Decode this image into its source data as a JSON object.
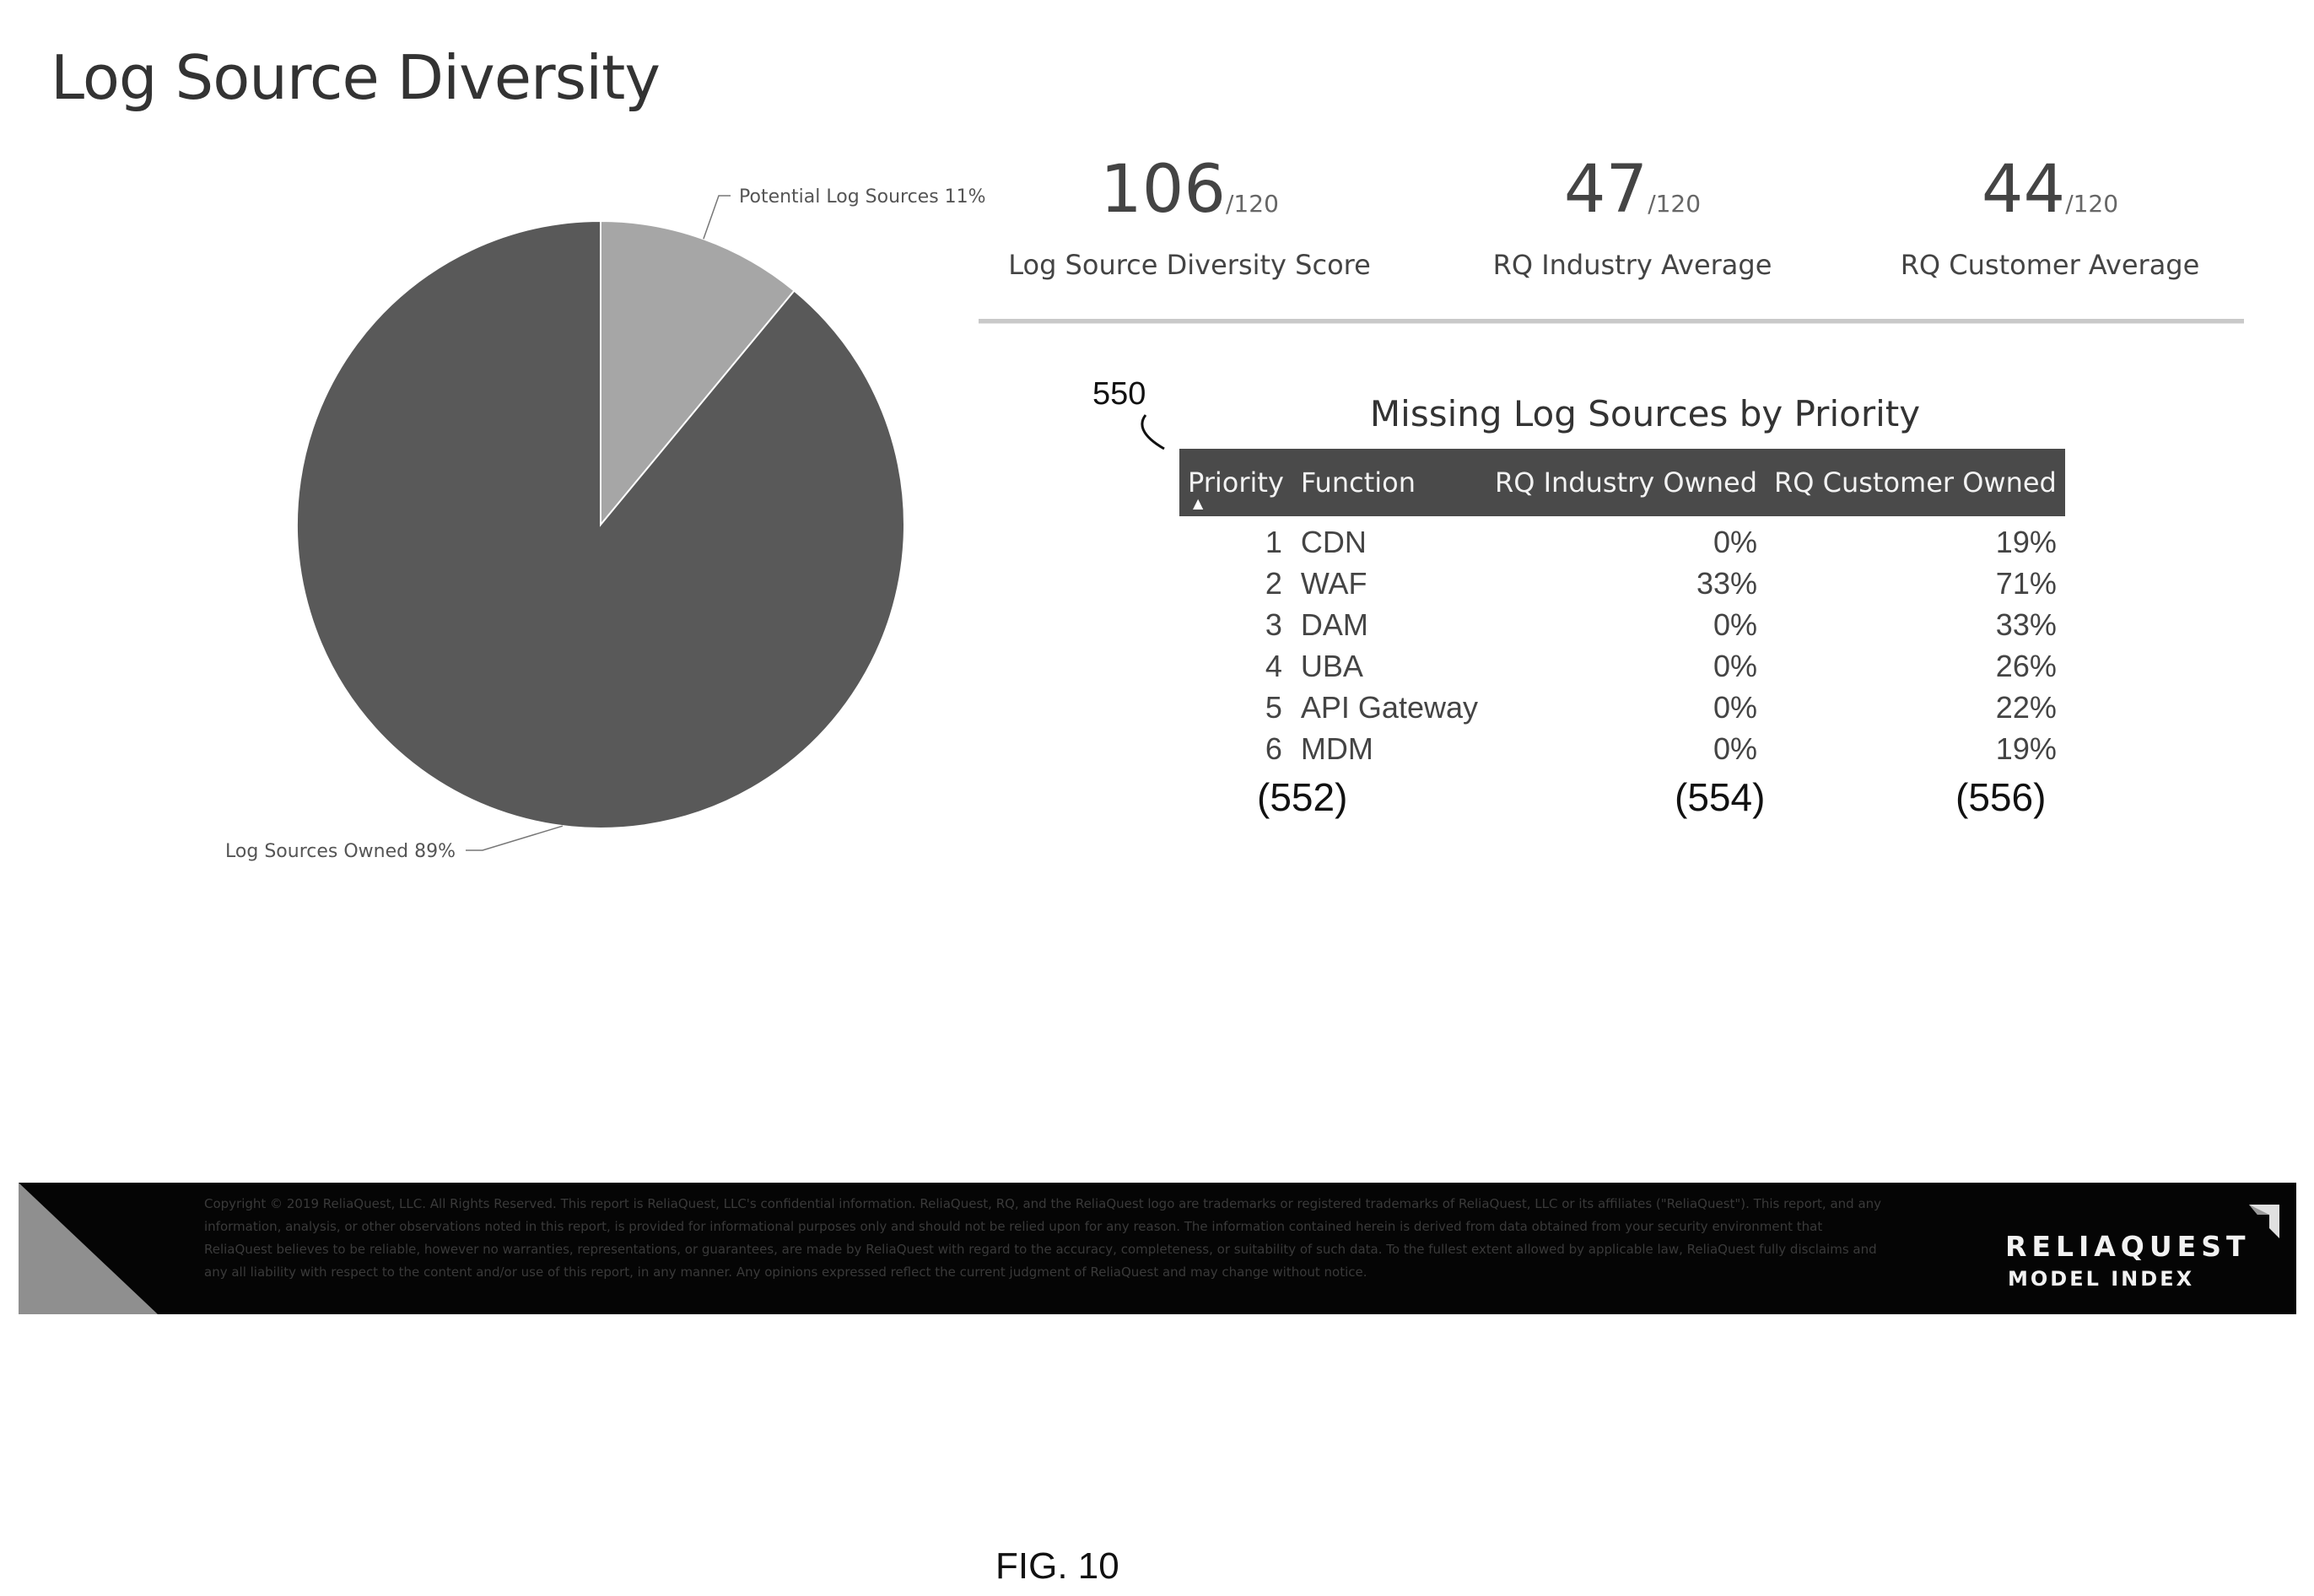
{
  "page": {
    "title": "Log Source Diversity",
    "figure_label": "FIG. 10"
  },
  "chart_data": {
    "type": "pie",
    "slices": [
      {
        "label": "Log Sources Owned 89%",
        "value": 89,
        "color": "#595959"
      },
      {
        "label": "Potential Log Sources 11%",
        "value": 11,
        "color": "#a6a6a6"
      }
    ]
  },
  "stats": [
    {
      "value": "106",
      "denominator": "/120",
      "label": "Log Source Diversity Score"
    },
    {
      "value": "47",
      "denominator": "/120",
      "label": "RQ Industry Average"
    },
    {
      "value": "44",
      "denominator": "/120",
      "label": "RQ Customer Average"
    }
  ],
  "missing_table": {
    "ref": "550",
    "title": "Missing Log Sources by Priority",
    "columns": [
      "Priority",
      "Function",
      "RQ Industry Owned",
      "RQ Customer Owned"
    ],
    "sort_indicator": "▲",
    "rows": [
      {
        "priority": "1",
        "function": "CDN",
        "industry_owned": "0%",
        "customer_owned": "19%"
      },
      {
        "priority": "2",
        "function": "WAF",
        "industry_owned": "33%",
        "customer_owned": "71%"
      },
      {
        "priority": "3",
        "function": "DAM",
        "industry_owned": "0%",
        "customer_owned": "33%"
      },
      {
        "priority": "4",
        "function": "UBA",
        "industry_owned": "0%",
        "customer_owned": "26%"
      },
      {
        "priority": "5",
        "function": "API Gateway",
        "industry_owned": "0%",
        "customer_owned": "22%"
      },
      {
        "priority": "6",
        "function": "MDM",
        "industry_owned": "0%",
        "customer_owned": "19%"
      }
    ],
    "column_refs": [
      "(552)",
      "(554)",
      "(556)"
    ]
  },
  "footer": {
    "legal_text": "Copyright © 2019 ReliaQuest, LLC. All Rights Reserved. This report is ReliaQuest, LLC's confidential information. ReliaQuest, RQ, and the ReliaQuest logo are trademarks or registered trademarks of ReliaQuest, LLC or its affiliates (\"ReliaQuest\"). This report, and any information, analysis, or other observations noted in this report, is provided for informational purposes only and should not be relied upon for any reason. The information contained herein is derived from data obtained from your security environment that ReliaQuest believes to be reliable, however no warranties, representations, or guarantees, are made by ReliaQuest with regard to the accuracy, completeness, or suitability of such data. To the fullest extent allowed by applicable law, ReliaQuest fully disclaims and any all liability with respect to the content and/or use of this report, in any manner. Any opinions expressed reflect the current judgment of ReliaQuest and may change without notice.",
    "brand_name": "RELIAQUEST",
    "brand_sub": "MODEL INDEX"
  }
}
